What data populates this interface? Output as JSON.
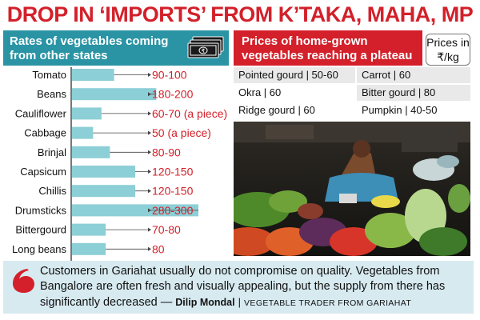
{
  "headline": "DROP IN ‘IMPORTS’ FROM K’TAKA, MAHA, MP",
  "left_panel": {
    "title": "Rates of vegetables coming from other states",
    "icon": "money-notes-icon"
  },
  "right_panel": {
    "title": "Prices of home-grown vegetables reaching a plateau",
    "unit_label": "Prices in ₹/kg",
    "rows": [
      [
        "Pointed gourd | 50-60",
        "Carrot | 60"
      ],
      [
        "Okra | 60",
        "Bitter gourd | 80"
      ],
      [
        "Ridge gourd | 60",
        "Pumpkin | 40-50"
      ]
    ],
    "photo": "vegetable-vendor-market-photo"
  },
  "chart_data": {
    "type": "bar",
    "categories": [
      "Tomato",
      "Beans",
      "Cauliflower",
      "Cabbage",
      "Brinjal",
      "Capsicum",
      "Chillis",
      "Drumsticks",
      "Bittergourd",
      "Long beans"
    ],
    "labels": [
      "90-100",
      "180-200",
      "60-70 (a piece)",
      "50 (a piece)",
      "80-90",
      "120-150",
      "120-150",
      "280-300",
      "70-80",
      "80"
    ],
    "values": [
      100,
      200,
      70,
      50,
      90,
      150,
      150,
      300,
      80,
      80
    ],
    "bar_color": "#8ccfd6",
    "value_color": "#d3202a",
    "xlim": [
      0,
      300
    ]
  },
  "quote": {
    "text": "Customers in Gariahat usually do not compromise on quality. Vegetables from Bangalore are often fresh and visually appealing, but the supply from there has significantly decreased —",
    "speaker": "Dilip Mondal",
    "separator": "|",
    "role": "VEGETABLE TRADER FROM GARIAHAT"
  },
  "colors": {
    "accent_red": "#d3202a",
    "teal": "#2a94a5",
    "quote_bg": "#d7eaf0"
  }
}
